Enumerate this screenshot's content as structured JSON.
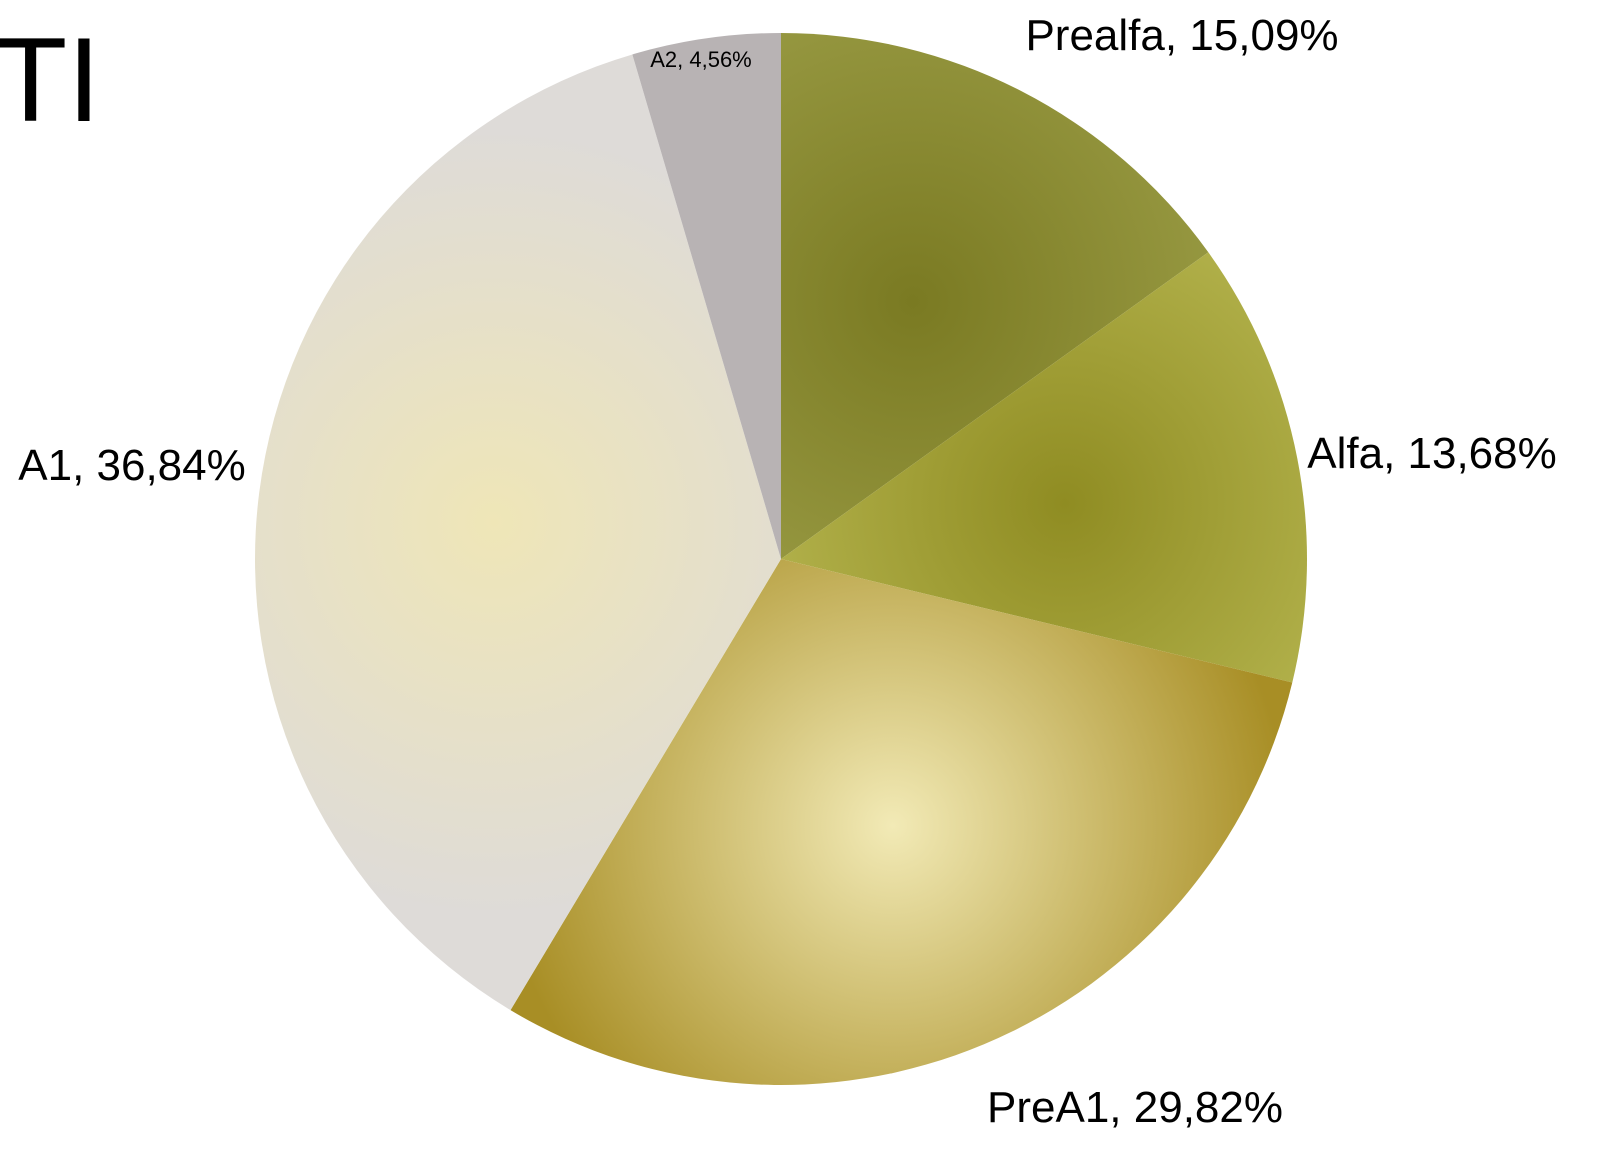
{
  "page": {
    "title_fragment": "TI"
  },
  "chart_data": {
    "type": "pie",
    "start_angle_deg": 0,
    "direction": "clockwise",
    "slices": [
      {
        "label": "Prealfa",
        "value": 15.09,
        "display": "Prealfa, 15,09%",
        "color": "#8c8a32",
        "gradient": [
          "#9ea049",
          "#7a7a22"
        ]
      },
      {
        "label": "Alfa",
        "value": 13.68,
        "display": "Alfa, 13,68%",
        "color": "#a9a63e",
        "gradient": [
          "#bcbc57",
          "#8f8c22"
        ]
      },
      {
        "label": "PreA1",
        "value": 29.82,
        "display": "PreA1, 29,82%",
        "color": "#d8c77e",
        "gradient": [
          "#f2eab6",
          "#a88e25"
        ]
      },
      {
        "label": "A1",
        "value": 36.84,
        "display": "A1, 36,84%",
        "color": "#e6e0c4",
        "gradient": [
          "#dedbd8",
          "#efe6b7"
        ]
      },
      {
        "label": "A2",
        "value": 4.56,
        "display": "A2, 4,56%",
        "color": "#b8b3b4",
        "gradient": [
          "#b8b3b4",
          "#b8b3b4"
        ]
      }
    ]
  }
}
